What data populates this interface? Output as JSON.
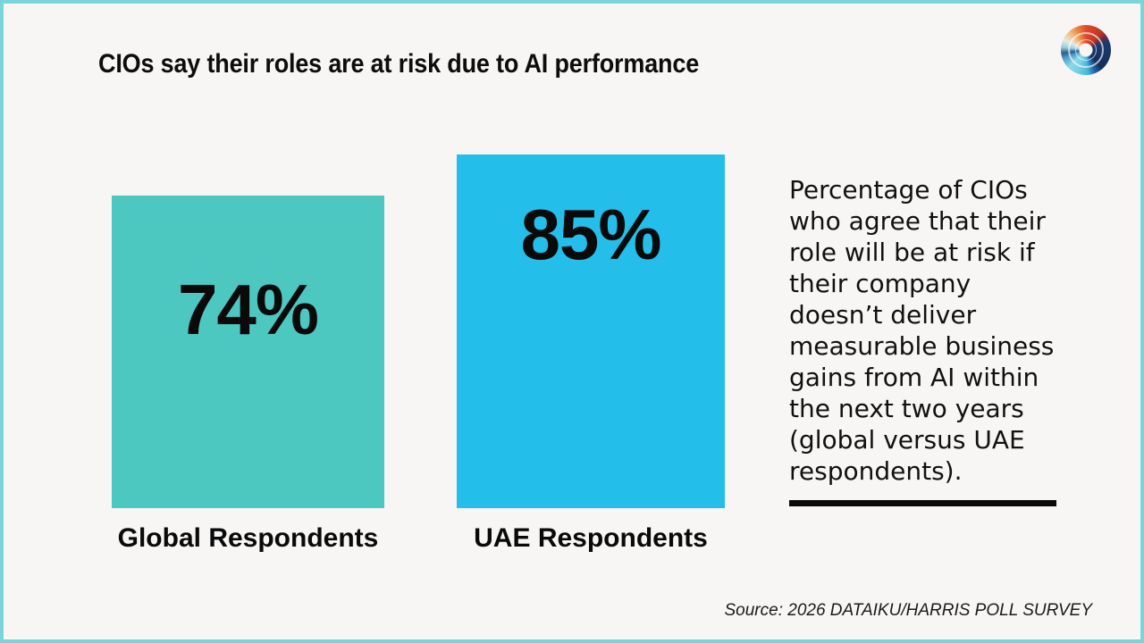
{
  "page": {
    "background_color": "#f7f6f5",
    "border_color": "#79d5d8"
  },
  "header": {
    "title": "CIOs say their roles are at risk due to AI performance"
  },
  "icons": {
    "logo": "swirl-ring-logo"
  },
  "chart": {
    "bars": [
      {
        "label": "Global Respondents",
        "value": 74,
        "value_label": "74%",
        "color": "#4cc8c0"
      },
      {
        "label": "UAE Respondents",
        "value": 85,
        "value_label": "85%",
        "color": "#23bfea"
      }
    ],
    "note": "Percentage of CIOs\nwho agree that their\nrole will be at risk if\ntheir company\ndoesn’t deliver\nmeasurable business\ngains from AI within\nthe next two years\n(global versus UAE\nrespondents).",
    "source": "Source: 2026 DATAIKU/HARRIS POLL SURVEY"
  },
  "chart_data": {
    "type": "bar",
    "title": "CIOs say their roles are at risk due to AI performance",
    "categories": [
      "Global Respondents",
      "UAE Respondents"
    ],
    "values": [
      74,
      85
    ],
    "unit": "%",
    "data_labels": [
      "74%",
      "85%"
    ],
    "series_colors": [
      "#4cc8c0",
      "#23bfea"
    ],
    "ylim": [
      0,
      100
    ],
    "grid": false,
    "legend": false,
    "annotation": "Percentage of CIOs who agree that their role will be at risk if their company doesn’t deliver measurable business gains from AI within the next two years (global versus UAE respondents).",
    "source": "Source: 2026 DATAIKU/HARRIS POLL SURVEY"
  }
}
